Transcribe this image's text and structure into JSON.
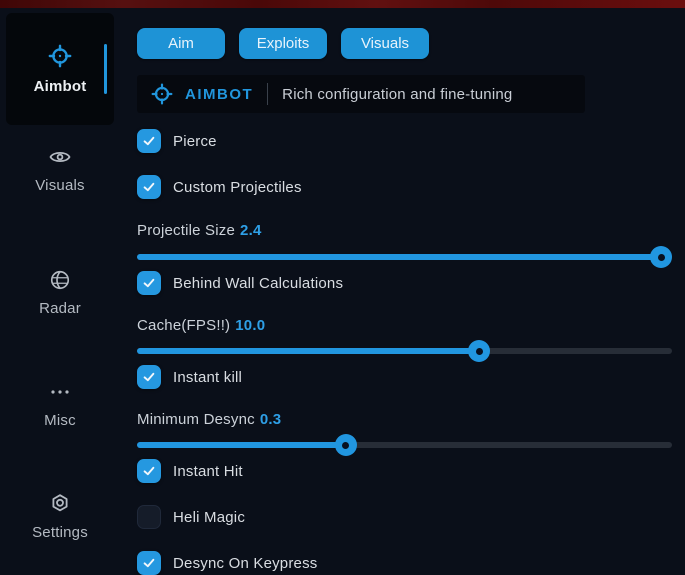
{
  "colors": {
    "accent": "#2196dd",
    "background": "#0a0f19",
    "active_item_bg": "#04070b",
    "top_strip": "#561010",
    "slider_track": "#272d37"
  },
  "sidebar": {
    "items": [
      {
        "label": "Aimbot",
        "icon": "crosshair-icon",
        "active": true
      },
      {
        "label": "Visuals",
        "icon": "eye-icon",
        "active": false
      },
      {
        "label": "Radar",
        "icon": "globe-icon",
        "active": false
      },
      {
        "label": "Misc",
        "icon": "ellipsis-icon",
        "active": false
      },
      {
        "label": "Settings",
        "icon": "gear-icon",
        "active": false
      }
    ]
  },
  "tabs": [
    {
      "label": "Aim"
    },
    {
      "label": "Exploits"
    },
    {
      "label": "Visuals"
    }
  ],
  "header": {
    "title": "AIMBOT",
    "subtitle": "Rich configuration and fine-tuning"
  },
  "controls": {
    "pierce": {
      "type": "checkbox",
      "label": "Pierce",
      "checked": true
    },
    "custom_proj": {
      "type": "checkbox",
      "label": "Custom Projectiles",
      "checked": true
    },
    "proj_size": {
      "type": "slider",
      "label": "Projectile Size",
      "value": "2.4",
      "percent": 98
    },
    "behind_wall": {
      "type": "checkbox",
      "label": "Behind Wall Calculations",
      "checked": true
    },
    "cache_fps": {
      "type": "slider",
      "label": "Cache(FPS!!)",
      "value": "10.0",
      "percent": 64
    },
    "instant_kill": {
      "type": "checkbox",
      "label": "Instant kill",
      "checked": true
    },
    "min_desync": {
      "type": "slider",
      "label": "Minimum Desync",
      "value": "0.3",
      "percent": 39
    },
    "instant_hit": {
      "type": "checkbox",
      "label": "Instant Hit",
      "checked": true
    },
    "heli_magic": {
      "type": "checkbox",
      "label": "Heli Magic",
      "checked": false
    },
    "desync_keypress": {
      "type": "checkbox",
      "label": "Desync On Keypress",
      "checked": true
    }
  }
}
